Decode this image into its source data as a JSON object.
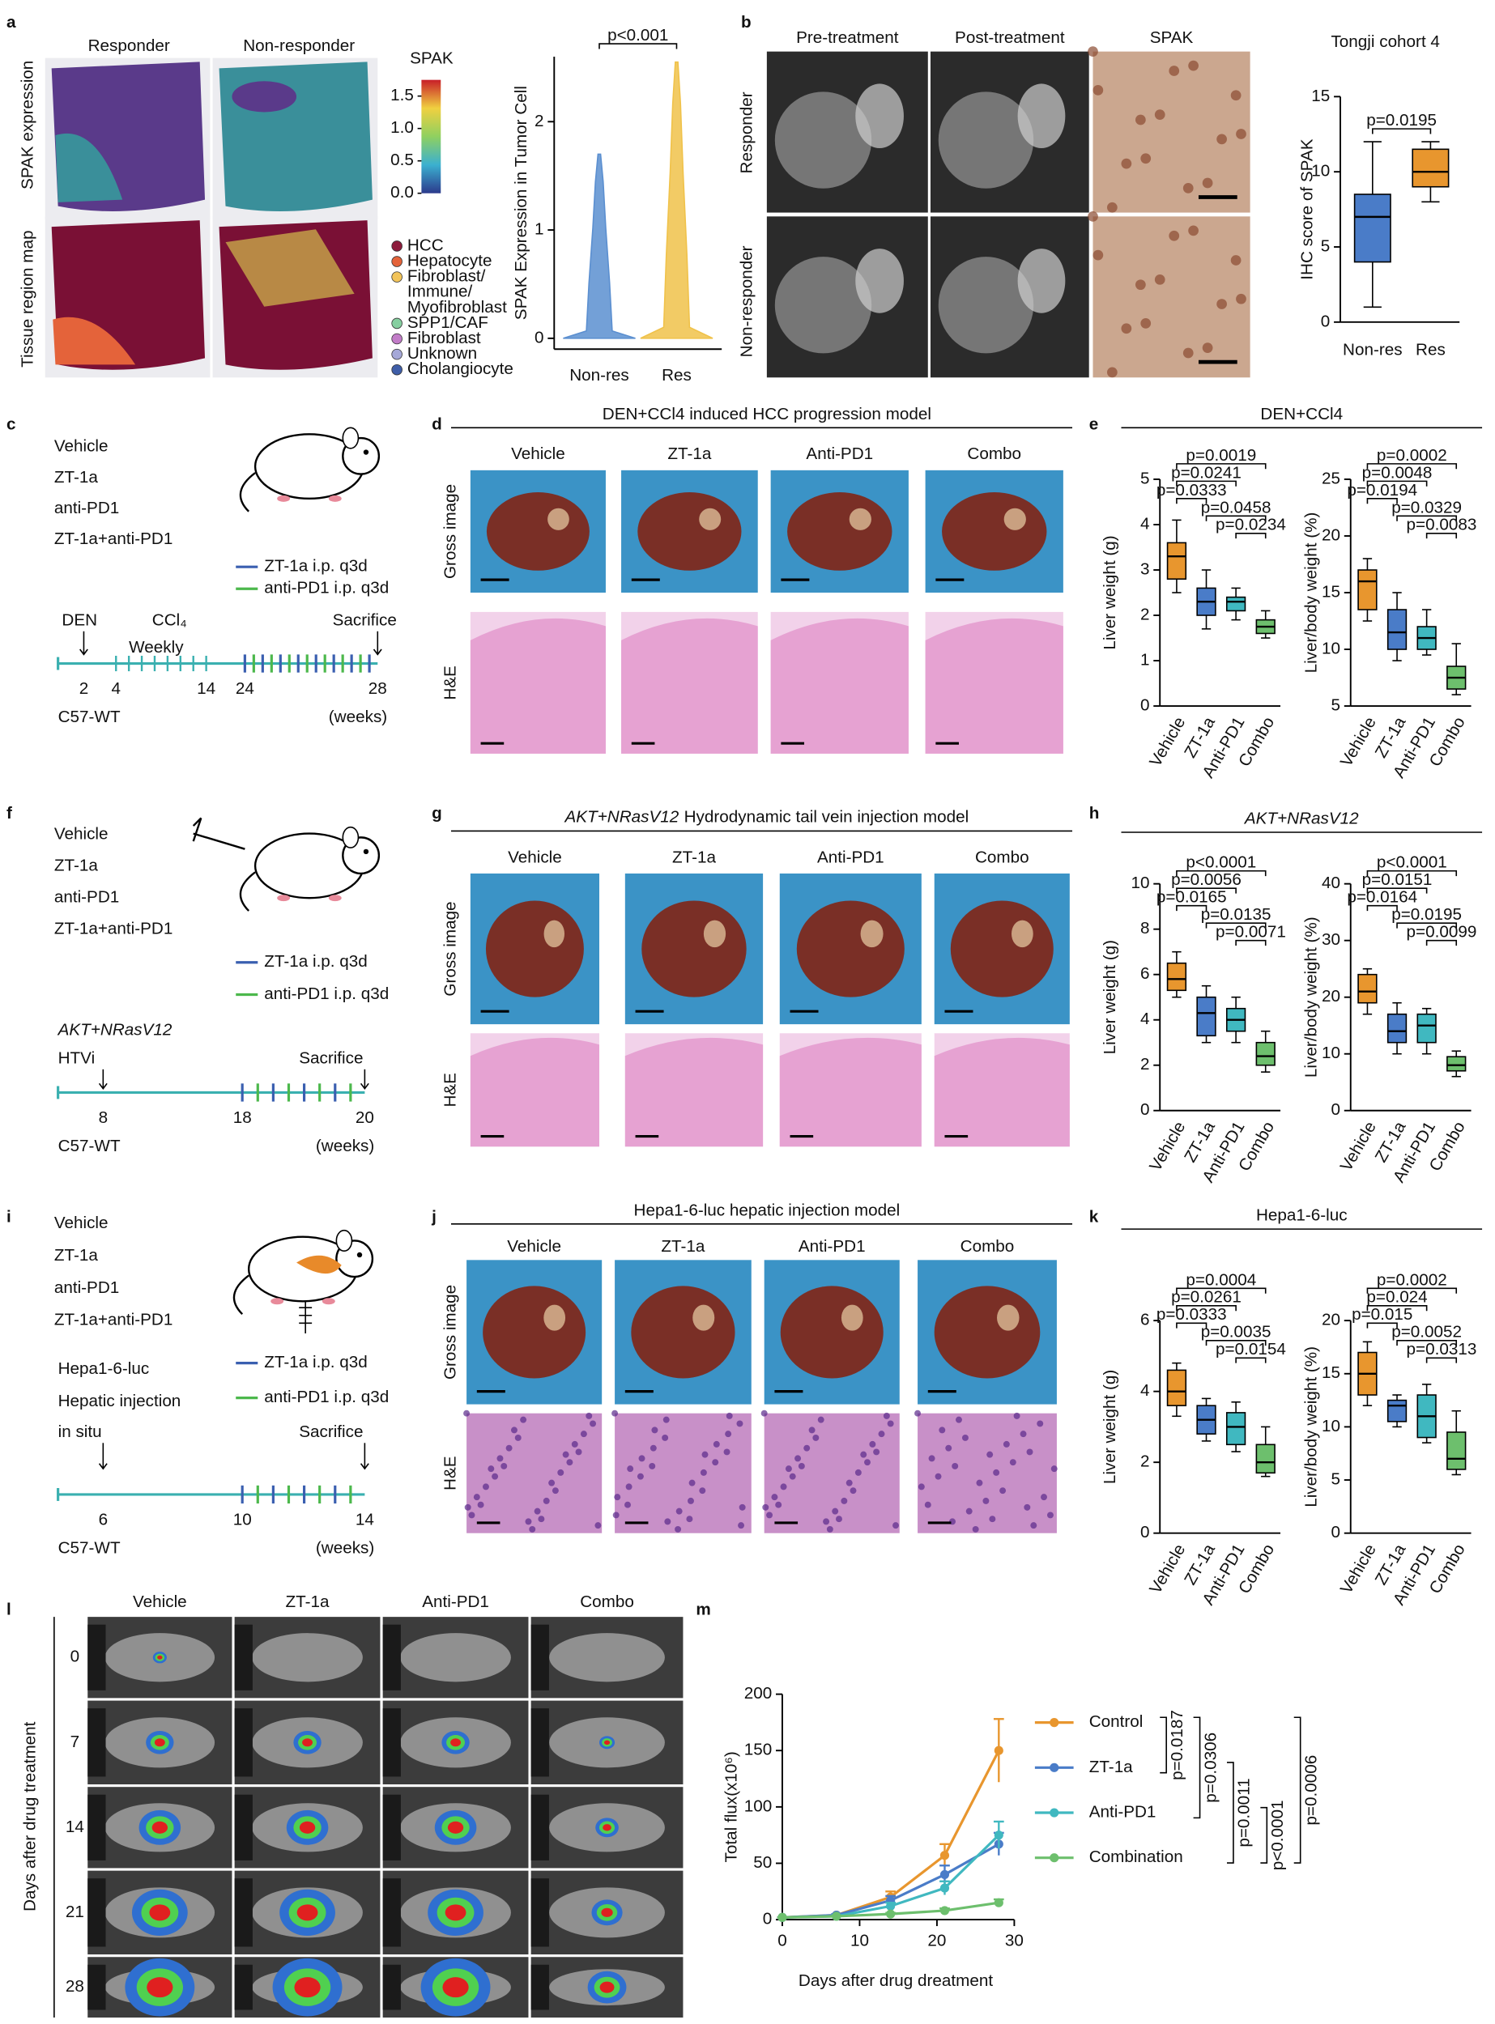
{
  "figure": {
    "panel_labels": [
      "a",
      "b",
      "c",
      "d",
      "e",
      "f",
      "g",
      "h",
      "i",
      "j",
      "k",
      "l",
      "m"
    ],
    "panel_a": {
      "columns": [
        "Responder",
        "Non-responder"
      ],
      "rows": [
        "SPAK expression",
        "Tissue region map"
      ],
      "legend": [
        {
          "label": "HCC",
          "color": "#8c1c3c"
        },
        {
          "label": "Hepatocyte",
          "color": "#e4633a"
        },
        {
          "label": [
            "Fibroblast/",
            "Immune/",
            "Myofibroblast"
          ],
          "color": "#f2c45a"
        },
        {
          "label": "SPP1/CAF",
          "color": "#86cfa0"
        },
        {
          "label": "Fibroblast",
          "color": "#c27cc8"
        },
        {
          "label": "Unknown",
          "color": "#a5a8d8"
        },
        {
          "label": "Cholangiocyte",
          "color": "#3f5ea8"
        }
      ]
    },
    "panel_b": {
      "columns": [
        "Pre-treatment",
        "Post-treatment",
        "SPAK"
      ],
      "rows": [
        "Responder",
        "Non-responder"
      ]
    },
    "panel_c": {
      "groups": [
        "Vehicle",
        "ZT-1a",
        "anti-PD1",
        "ZT-1a+anti-PD1"
      ],
      "legend": [
        "ZT-1a i.p. q3d",
        "anti-PD1 i.p. q3d"
      ],
      "events": [
        "DEN",
        "CCl₄",
        "Weekly",
        "Sacrifice"
      ],
      "timeline_ticks": [
        "2",
        "4",
        "14",
        "24",
        "28"
      ],
      "strain": "C57-WT",
      "unit": "(weeks)"
    },
    "panel_d": {
      "title": "DEN+CCl4 induced HCC progression model",
      "columns": [
        "Vehicle",
        "ZT-1a",
        "Anti-PD1",
        "Combo"
      ],
      "rows": [
        "Gross image",
        "H&E"
      ]
    },
    "panel_e": {
      "title": "DEN+CCl4"
    },
    "panel_f": {
      "groups": [
        "Vehicle",
        "ZT-1a",
        "anti-PD1",
        "ZT-1a+anti-PD1"
      ],
      "legend": [
        "ZT-1a i.p. q3d",
        "anti-PD1 i.p. q3d"
      ],
      "events": [
        "AKT+NRasV12",
        "HTVi",
        "Sacrifice"
      ],
      "timeline_ticks": [
        "8",
        "18",
        "20"
      ],
      "strain": "C57-WT",
      "unit": "(weeks)"
    },
    "panel_g": {
      "title": [
        "AKT+NRasV12",
        "Hydrodynamic tail vein injection model"
      ],
      "columns": [
        "Vehicle",
        "ZT-1a",
        "Anti-PD1",
        "Combo"
      ],
      "rows": [
        "Gross image",
        "H&E"
      ]
    },
    "panel_h": {
      "title": "AKT+NRasV12"
    },
    "panel_i": {
      "groups": [
        "Vehicle",
        "ZT-1a",
        "anti-PD1",
        "ZT-1a+anti-PD1"
      ],
      "legend": [
        "ZT-1a i.p. q3d",
        "anti-PD1 i.p. q3d"
      ],
      "events": [
        "Hepa1-6-luc",
        "Hepatic injection",
        "in situ",
        "Sacrifice"
      ],
      "timeline_ticks": [
        "6",
        "10",
        "14"
      ],
      "strain": "C57-WT",
      "unit": "(weeks)"
    },
    "panel_j": {
      "title": "Hepa1-6-luc hepatic injection model",
      "columns": [
        "Vehicle",
        "ZT-1a",
        "Anti-PD1",
        "Combo"
      ],
      "rows": [
        "Gross image",
        "H&E"
      ]
    },
    "panel_k": {
      "title": "Hepa1-6-luc"
    },
    "panel_l": {
      "columns": [
        "Vehicle",
        "ZT-1a",
        "Anti-PD1",
        "Combo"
      ],
      "rows": [
        "0",
        "7",
        "14",
        "21",
        "28"
      ],
      "axis_label": "Days after drug treatment"
    }
  },
  "chart_data": [
    {
      "type": "colorbar",
      "title": "SPAK",
      "lim": [
        0,
        1.75
      ],
      "ticks": [
        {
          "value": 0,
          "label": "0.0"
        },
        {
          "value": 0.5,
          "label": "0.5"
        },
        {
          "value": 1,
          "label": "1.0"
        },
        {
          "value": 1.5,
          "label": "1.5"
        }
      ]
    },
    {
      "type": "violin",
      "ylabel": "SPAK Expression in Tumor Cell",
      "categories": [
        "Non-res",
        "Res"
      ],
      "colors": [
        "#5b8fd0",
        "#f0c24a"
      ],
      "min": [
        0,
        0
      ],
      "max": [
        1.7,
        2.55
      ],
      "ylim": [
        -0.1,
        2.6
      ],
      "yticks": [
        0,
        1,
        2
      ],
      "comparisons": [
        {
          "pair": [
            0,
            1
          ],
          "label": "p<0.001"
        }
      ]
    },
    {
      "type": "box",
      "title": "Tongji cohort 4",
      "ylabel": "IHC score of SPAK",
      "categories": [
        "Non-res",
        "Res"
      ],
      "colors": [
        "#4a7cc8",
        "#e8962e"
      ],
      "min": [
        1,
        8
      ],
      "q1": [
        4,
        9
      ],
      "median": [
        7,
        10
      ],
      "q3": [
        8.5,
        11.5
      ],
      "max": [
        12,
        12
      ],
      "ylim": [
        0,
        15
      ],
      "yticks": [
        0,
        5,
        10,
        15
      ],
      "comparisons": [
        {
          "pair": [
            0,
            1
          ],
          "label": "p=0.0195"
        }
      ]
    },
    {
      "type": "box",
      "ylabel": "Liver weight (g)",
      "categories": [
        "Vehicle",
        "ZT-1a",
        "Anti-PD1",
        "Combo"
      ],
      "colors": [
        "#e8962e",
        "#4a7cc8",
        "#40b8c0",
        "#6dbf6d"
      ],
      "min": [
        2.5,
        1.7,
        1.9,
        1.5
      ],
      "q1": [
        2.8,
        2.0,
        2.1,
        1.6
      ],
      "median": [
        3.3,
        2.3,
        2.3,
        1.75
      ],
      "q3": [
        3.6,
        2.6,
        2.4,
        1.9
      ],
      "max": [
        4.1,
        3.0,
        2.6,
        2.1
      ],
      "ylim": [
        0,
        5
      ],
      "yticks": [
        0,
        1,
        2,
        3,
        4,
        5
      ],
      "comparisons": [
        {
          "pair": [
            0,
            3
          ],
          "label": "p=0.0019"
        },
        {
          "pair": [
            0,
            2
          ],
          "label": "p=0.0241"
        },
        {
          "pair": [
            0,
            1
          ],
          "label": "p=0.0333"
        },
        {
          "pair": [
            1,
            3
          ],
          "label": "p=0.0458"
        },
        {
          "pair": [
            2,
            3
          ],
          "label": "p=0.0234"
        }
      ]
    },
    {
      "type": "box",
      "ylabel": "Liver/body weight (%)",
      "categories": [
        "Vehicle",
        "ZT-1a",
        "Anti-PD1",
        "Combo"
      ],
      "colors": [
        "#e8962e",
        "#4a7cc8",
        "#40b8c0",
        "#6dbf6d"
      ],
      "min": [
        12.5,
        9,
        9.5,
        6
      ],
      "q1": [
        13.5,
        10,
        10,
        6.5
      ],
      "median": [
        16,
        11.5,
        11,
        7.5
      ],
      "q3": [
        17,
        13.5,
        12,
        8.5
      ],
      "max": [
        18,
        15,
        13.5,
        10.5
      ],
      "ylim": [
        5,
        25
      ],
      "yticks": [
        5,
        10,
        15,
        20,
        25
      ],
      "comparisons": [
        {
          "pair": [
            0,
            3
          ],
          "label": "p=0.0002"
        },
        {
          "pair": [
            0,
            2
          ],
          "label": "p=0.0048"
        },
        {
          "pair": [
            0,
            1
          ],
          "label": "p=0.0194"
        },
        {
          "pair": [
            1,
            3
          ],
          "label": "p=0.0329"
        },
        {
          "pair": [
            2,
            3
          ],
          "label": "p=0.0083"
        }
      ]
    },
    {
      "type": "box",
      "ylabel": "Liver weight (g)",
      "categories": [
        "Vehicle",
        "ZT-1a",
        "Anti-PD1",
        "Combo"
      ],
      "colors": [
        "#e8962e",
        "#4a7cc8",
        "#40b8c0",
        "#6dbf6d"
      ],
      "min": [
        5,
        3,
        3,
        1.7
      ],
      "q1": [
        5.3,
        3.3,
        3.5,
        2
      ],
      "median": [
        5.8,
        4.3,
        4,
        2.4
      ],
      "q3": [
        6.5,
        5,
        4.5,
        3
      ],
      "max": [
        7,
        5.5,
        5,
        3.5
      ],
      "ylim": [
        0,
        10
      ],
      "yticks": [
        0,
        2,
        4,
        6,
        8,
        10
      ],
      "comparisons": [
        {
          "pair": [
            0,
            3
          ],
          "label": "p<0.0001"
        },
        {
          "pair": [
            0,
            2
          ],
          "label": "p=0.0056"
        },
        {
          "pair": [
            0,
            1
          ],
          "label": "p=0.0165"
        },
        {
          "pair": [
            1,
            3
          ],
          "label": "p=0.0135"
        },
        {
          "pair": [
            2,
            3
          ],
          "label": "p=0.0071"
        }
      ]
    },
    {
      "type": "box",
      "ylabel": "Liver/body weight (%)",
      "categories": [
        "Vehicle",
        "ZT-1a",
        "Anti-PD1",
        "Combo"
      ],
      "colors": [
        "#e8962e",
        "#4a7cc8",
        "#40b8c0",
        "#6dbf6d"
      ],
      "min": [
        17,
        10,
        10,
        6
      ],
      "q1": [
        19,
        12,
        12,
        7
      ],
      "median": [
        21,
        14,
        15,
        8
      ],
      "q3": [
        24,
        17,
        17,
        9.5
      ],
      "max": [
        25,
        19,
        18,
        10.5
      ],
      "ylim": [
        0,
        40
      ],
      "yticks": [
        0,
        10,
        20,
        30,
        40
      ],
      "comparisons": [
        {
          "pair": [
            0,
            3
          ],
          "label": "p<0.0001"
        },
        {
          "pair": [
            0,
            2
          ],
          "label": "p=0.0151"
        },
        {
          "pair": [
            0,
            1
          ],
          "label": "p=0.0164"
        },
        {
          "pair": [
            1,
            3
          ],
          "label": "p=0.0195"
        },
        {
          "pair": [
            2,
            3
          ],
          "label": "p=0.0099"
        }
      ]
    },
    {
      "type": "box",
      "ylabel": "Liver weight (g)",
      "categories": [
        "Vehicle",
        "ZT-1a",
        "Anti-PD1",
        "Combo"
      ],
      "colors": [
        "#e8962e",
        "#4a7cc8",
        "#40b8c0",
        "#6dbf6d"
      ],
      "min": [
        3.3,
        2.6,
        2.3,
        1.6
      ],
      "q1": [
        3.6,
        2.8,
        2.5,
        1.7
      ],
      "median": [
        4,
        3.2,
        3,
        2
      ],
      "q3": [
        4.6,
        3.6,
        3.4,
        2.5
      ],
      "max": [
        4.8,
        3.8,
        3.7,
        3
      ],
      "ylim": [
        0,
        6
      ],
      "yticks": [
        0,
        2,
        4,
        6
      ],
      "comparisons": [
        {
          "pair": [
            0,
            3
          ],
          "label": "p=0.0004"
        },
        {
          "pair": [
            0,
            2
          ],
          "label": "p=0.0261"
        },
        {
          "pair": [
            0,
            1
          ],
          "label": "p=0.0333"
        },
        {
          "pair": [
            1,
            3
          ],
          "label": "p=0.0035"
        },
        {
          "pair": [
            2,
            3
          ],
          "label": "p=0.0154"
        }
      ]
    },
    {
      "type": "box",
      "ylabel": "Liver/body weight (%)",
      "categories": [
        "Vehicle",
        "ZT-1a",
        "Anti-PD1",
        "Combo"
      ],
      "colors": [
        "#e8962e",
        "#4a7cc8",
        "#40b8c0",
        "#6dbf6d"
      ],
      "min": [
        12,
        10,
        8.5,
        5.5
      ],
      "q1": [
        13,
        10.5,
        9,
        6
      ],
      "median": [
        15,
        12,
        11,
        7
      ],
      "q3": [
        17,
        12.5,
        13,
        9.5
      ],
      "max": [
        18,
        13,
        14,
        11.5
      ],
      "ylim": [
        0,
        20
      ],
      "yticks": [
        0,
        5,
        10,
        15,
        20
      ],
      "comparisons": [
        {
          "pair": [
            0,
            3
          ],
          "label": "p=0.0002"
        },
        {
          "pair": [
            0,
            2
          ],
          "label": "p=0.024"
        },
        {
          "pair": [
            0,
            1
          ],
          "label": "p=0.015"
        },
        {
          "pair": [
            1,
            3
          ],
          "label": "p=0.0052"
        },
        {
          "pair": [
            2,
            3
          ],
          "label": "p=0.0313"
        }
      ]
    },
    {
      "type": "line",
      "xlabel": "Days after drug dreatment",
      "ylabel": "Total flux(x10⁶)",
      "x": [
        0,
        7,
        14,
        21,
        28
      ],
      "xlim": [
        0,
        30
      ],
      "xticks": [
        0,
        10,
        20,
        30
      ],
      "ylim": [
        0,
        200
      ],
      "yticks": [
        0,
        50,
        100,
        150,
        200
      ],
      "series": [
        {
          "name": "Control",
          "color": "#e8962e",
          "values": [
            2,
            4,
            20,
            57,
            150
          ],
          "errors": [
            0,
            1,
            5,
            10,
            28
          ]
        },
        {
          "name": "ZT-1a",
          "color": "#4a7cc8",
          "values": [
            2,
            4,
            17,
            40,
            67
          ],
          "errors": [
            0,
            1,
            4,
            8,
            10
          ]
        },
        {
          "name": "Anti-PD1",
          "color": "#40b8c0",
          "values": [
            2,
            3,
            12,
            28,
            75
          ],
          "errors": [
            0,
            1,
            3,
            6,
            12
          ]
        },
        {
          "name": "Combination",
          "color": "#6dbf6d",
          "values": [
            2,
            3,
            5,
            8,
            15
          ],
          "errors": [
            0,
            0.5,
            1,
            2,
            3
          ]
        }
      ],
      "comparisons": [
        {
          "pair": [
            0,
            1
          ],
          "label": "p=0.0187"
        },
        {
          "pair": [
            0,
            2
          ],
          "label": "p=0.0306"
        },
        {
          "pair": [
            1,
            3
          ],
          "label": "p=0.0011"
        },
        {
          "pair": [
            2,
            3
          ],
          "label": "p<0.0001"
        },
        {
          "pair": [
            0,
            3
          ],
          "label": "p=0.0006"
        }
      ]
    }
  ]
}
